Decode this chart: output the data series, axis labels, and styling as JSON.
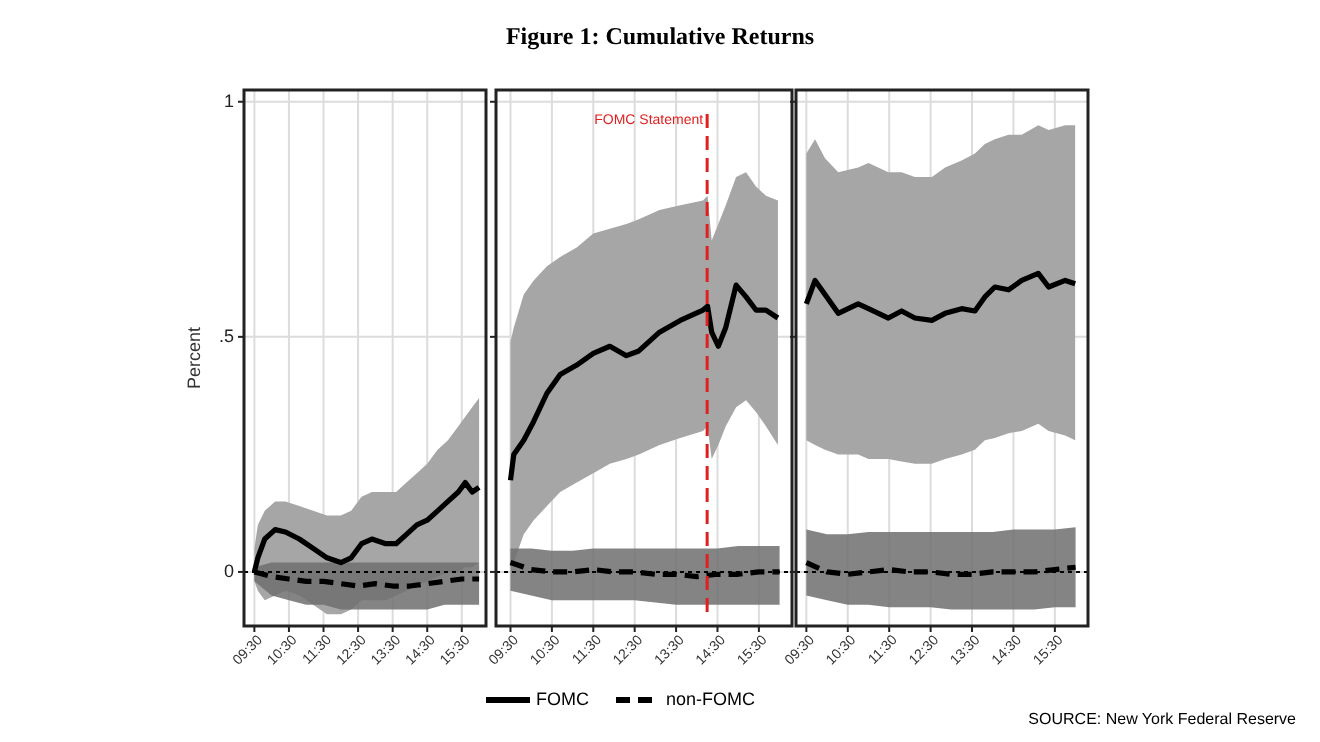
{
  "chart_data": [
    {
      "type": "line",
      "ylabel": "Percent",
      "xlim": [
        9.2,
        16.2
      ],
      "ylim": [
        -0.115,
        1.025
      ],
      "xticks": [
        {
          "value": 9.5,
          "label": "09:30"
        },
        {
          "value": 10.5,
          "label": "10:30"
        },
        {
          "value": 11.5,
          "label": "11:30"
        },
        {
          "value": 12.5,
          "label": "12:30"
        },
        {
          "value": 13.5,
          "label": "13:30"
        },
        {
          "value": 14.5,
          "label": "14:30"
        },
        {
          "value": 15.5,
          "label": "15:30"
        }
      ],
      "yticks": [
        0,
        {
          "value": 0.5,
          "label": ".5"
        },
        1
      ],
      "grid": true,
      "legend": false,
      "ref_lines": [
        {
          "axis": "y",
          "value": 0,
          "label": null,
          "color": "#000000",
          "line_style": "dotted"
        }
      ],
      "series": [
        {
          "color": "#000000",
          "line_style": "solid",
          "x": [
            9.5,
            9.6,
            9.8,
            10.1,
            10.4,
            10.8,
            11.2,
            11.6,
            12.0,
            12.3,
            12.6,
            12.9,
            13.3,
            13.6,
            13.9,
            14.2,
            14.5,
            14.8,
            15.1,
            15.4,
            15.6,
            15.8,
            16.0
          ],
          "values": [
            0,
            0.03,
            0.07,
            0.09,
            0.085,
            0.07,
            0.05,
            0.03,
            0.02,
            0.03,
            0.06,
            0.07,
            0.06,
            0.06,
            0.08,
            0.1,
            0.11,
            0.13,
            0.15,
            0.17,
            0.19,
            0.17,
            0.18
          ],
          "upper": [
            0.05,
            0.1,
            0.13,
            0.15,
            0.15,
            0.14,
            0.13,
            0.12,
            0.12,
            0.13,
            0.16,
            0.17,
            0.17,
            0.17,
            0.19,
            0.21,
            0.23,
            0.26,
            0.28,
            0.31,
            0.33,
            0.35,
            0.37
          ],
          "lower": [
            -0.02,
            -0.04,
            -0.06,
            -0.05,
            -0.04,
            -0.05,
            -0.07,
            -0.09,
            -0.09,
            -0.08,
            -0.06,
            -0.06,
            -0.06,
            -0.05,
            -0.04,
            -0.03,
            -0.02,
            -0.01,
            0,
            0,
            0.01,
            0.01,
            0.02
          ]
        },
        {
          "color": "#000000",
          "line_style": "dashed",
          "x": [
            9.5,
            10,
            10.5,
            11,
            11.5,
            12,
            12.5,
            13,
            13.5,
            14,
            14.5,
            15,
            15.5,
            16
          ],
          "values": [
            0,
            -0.01,
            -0.015,
            -0.02,
            -0.02,
            -0.025,
            -0.03,
            -0.025,
            -0.03,
            -0.03,
            -0.025,
            -0.02,
            -0.015,
            -0.015
          ],
          "upper": [
            0.01,
            0.02,
            0.02,
            0.02,
            0.02,
            0.02,
            0.02,
            0.02,
            0.02,
            0.02,
            0.02,
            0.02,
            0.02,
            0.02
          ],
          "lower": [
            -0.02,
            -0.05,
            -0.06,
            -0.07,
            -0.07,
            -0.08,
            -0.08,
            -0.08,
            -0.08,
            -0.08,
            -0.08,
            -0.07,
            -0.07,
            -0.07
          ]
        }
      ]
    },
    {
      "type": "line",
      "title": "Figure 1: Cumulative Returns",
      "xlim": [
        9.15,
        16.3
      ],
      "ylim": [
        -0.115,
        1.025
      ],
      "xticks": [
        {
          "value": 9.5,
          "label": "09:30"
        },
        {
          "value": 10.5,
          "label": "10:30"
        },
        {
          "value": 11.5,
          "label": "11:30"
        },
        {
          "value": 12.5,
          "label": "12:30"
        },
        {
          "value": 13.5,
          "label": "13:30"
        },
        {
          "value": 14.5,
          "label": "14:30"
        },
        {
          "value": 15.5,
          "label": "15:30"
        }
      ],
      "yticks": [
        {
          "value": 0,
          "label": null
        },
        {
          "value": 0.5,
          "label": null
        },
        {
          "value": 1,
          "label": null
        }
      ],
      "tick_labels": "x",
      "grid": true,
      "legend": "bottom",
      "ref_lines": [
        {
          "axis": "y",
          "value": 0,
          "label": null,
          "color": "#000000",
          "line_style": "dotted"
        },
        {
          "axis": "x",
          "value": 14.25,
          "label": "FOMC Statement",
          "color": "#e02020",
          "line_style": "dashed"
        }
      ],
      "series": [
        {
          "name": "FOMC",
          "color": "#000000",
          "line_style": "solid",
          "x": [
            9.5,
            9.58,
            9.82,
            10.06,
            10.38,
            10.7,
            11.1,
            11.5,
            11.9,
            12.3,
            12.6,
            13.1,
            13.6,
            14.15,
            14.26,
            14.36,
            14.52,
            14.7,
            14.95,
            15.19,
            15.43,
            15.67,
            15.96
          ],
          "values": [
            0.195,
            0.25,
            0.28,
            0.32,
            0.38,
            0.42,
            0.44,
            0.465,
            0.48,
            0.46,
            0.47,
            0.51,
            0.535,
            0.557,
            0.565,
            0.51,
            0.48,
            0.52,
            0.61,
            0.585,
            0.557,
            0.557,
            0.54
          ],
          "upper": [
            0.49,
            0.52,
            0.59,
            0.62,
            0.65,
            0.67,
            0.69,
            0.72,
            0.73,
            0.74,
            0.75,
            0.77,
            0.78,
            0.79,
            0.8,
            0.705,
            0.74,
            0.78,
            0.84,
            0.85,
            0.82,
            0.8,
            0.79
          ],
          "lower": [
            0.01,
            0.02,
            0.08,
            0.11,
            0.14,
            0.17,
            0.19,
            0.21,
            0.23,
            0.24,
            0.25,
            0.27,
            0.285,
            0.3,
            0.31,
            0.24,
            0.27,
            0.31,
            0.35,
            0.365,
            0.34,
            0.31,
            0.27
          ]
        },
        {
          "name": "non-FOMC",
          "color": "#000000",
          "line_style": "dashed",
          "x": [
            9.5,
            10,
            10.5,
            11,
            11.5,
            12,
            12.5,
            13,
            13.5,
            14,
            14.5,
            15,
            15.5,
            16
          ],
          "values": [
            0.02,
            0.005,
            0,
            0,
            0.005,
            0,
            0,
            -0.005,
            -0.005,
            -0.01,
            -0.005,
            -0.005,
            0,
            0
          ],
          "upper": [
            0.05,
            0.05,
            0.045,
            0.045,
            0.05,
            0.05,
            0.05,
            0.05,
            0.05,
            0.05,
            0.05,
            0.055,
            0.055,
            0.055
          ],
          "lower": [
            -0.04,
            -0.05,
            -0.06,
            -0.06,
            -0.06,
            -0.06,
            -0.06,
            -0.065,
            -0.07,
            -0.07,
            -0.07,
            -0.07,
            -0.07,
            -0.07
          ]
        }
      ]
    },
    {
      "type": "line",
      "xlim": [
        9.25,
        16.3
      ],
      "ylim": [
        -0.115,
        1.025
      ],
      "xticks": [
        {
          "value": 9.5,
          "label": "09:30"
        },
        {
          "value": 10.5,
          "label": "10:30"
        },
        {
          "value": 11.5,
          "label": "11:30"
        },
        {
          "value": 12.5,
          "label": "12:30"
        },
        {
          "value": 13.5,
          "label": "13:30"
        },
        {
          "value": 14.5,
          "label": "14:30"
        },
        {
          "value": 15.5,
          "label": "15:30"
        }
      ],
      "yticks": [
        {
          "value": 0,
          "label": null
        },
        {
          "value": 0.5,
          "label": null
        },
        {
          "value": 1,
          "label": null
        }
      ],
      "tick_labels": "x",
      "grid": true,
      "legend": false,
      "annotations": [
        "SOURCE: New York Federal Reserve"
      ],
      "ref_lines": [
        {
          "axis": "y",
          "value": 0,
          "label": null,
          "color": "#000000",
          "line_style": "dotted"
        }
      ],
      "series": [
        {
          "color": "#000000",
          "line_style": "solid",
          "x": [
            9.5,
            9.71,
            9.95,
            10.27,
            10.75,
            11.0,
            11.48,
            11.8,
            12.12,
            12.53,
            12.85,
            13.25,
            13.57,
            13.81,
            14.05,
            14.38,
            14.7,
            15.1,
            15.35,
            15.75,
            15.99
          ],
          "values": [
            0.57,
            0.62,
            0.59,
            0.55,
            0.57,
            0.56,
            0.54,
            0.555,
            0.54,
            0.535,
            0.55,
            0.56,
            0.555,
            0.585,
            0.606,
            0.6,
            0.62,
            0.635,
            0.606,
            0.62,
            0.613
          ],
          "upper": [
            0.89,
            0.92,
            0.88,
            0.85,
            0.86,
            0.87,
            0.85,
            0.85,
            0.84,
            0.84,
            0.86,
            0.875,
            0.89,
            0.91,
            0.92,
            0.93,
            0.93,
            0.95,
            0.94,
            0.95,
            0.95
          ],
          "lower": [
            0.28,
            0.27,
            0.26,
            0.25,
            0.25,
            0.24,
            0.24,
            0.235,
            0.23,
            0.23,
            0.24,
            0.25,
            0.26,
            0.28,
            0.285,
            0.295,
            0.3,
            0.315,
            0.3,
            0.29,
            0.28
          ]
        },
        {
          "color": "#000000",
          "line_style": "dashed",
          "x": [
            9.5,
            10,
            10.5,
            11,
            11.5,
            12,
            12.5,
            13,
            13.5,
            14,
            14.5,
            15,
            15.5,
            16
          ],
          "values": [
            0.02,
            0,
            -0.005,
            0,
            0.005,
            0,
            0,
            -0.005,
            -0.005,
            0,
            0,
            0,
            0.005,
            0.01
          ],
          "upper": [
            0.09,
            0.08,
            0.08,
            0.085,
            0.085,
            0.085,
            0.085,
            0.085,
            0.085,
            0.085,
            0.09,
            0.09,
            0.09,
            0.095
          ],
          "lower": [
            -0.05,
            -0.06,
            -0.07,
            -0.07,
            -0.075,
            -0.075,
            -0.075,
            -0.08,
            -0.08,
            -0.08,
            -0.08,
            -0.08,
            -0.075,
            -0.075
          ]
        }
      ]
    }
  ]
}
